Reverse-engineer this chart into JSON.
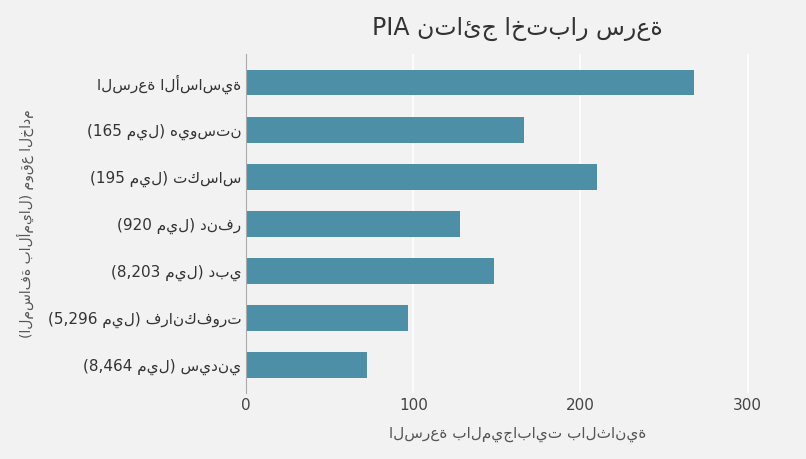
{
  "title": "PIA نتائج اختبار سرعة",
  "xlabel": "السرعة بالميجابايت بالثانية",
  "ylabel": "(المسافة بالأميال) موقع الخادم",
  "categories_display": [
    "السرعة الأساسية",
    "(165 ميل) هيوستن",
    "(195 ميل) تكساس",
    "(920 ميل) دنفر",
    "(8,203 ميل) دبي",
    "(5,296 ميل) فرانكفورت",
    "(8,464 ميل) سيدني"
  ],
  "values": [
    268,
    166,
    210,
    128,
    148,
    97,
    72
  ],
  "bar_color": "#4e8fa8",
  "background_color": "#f2f2f2",
  "xlim": [
    0,
    325
  ],
  "xticks": [
    0,
    100,
    200,
    300
  ],
  "title_fontsize": 17,
  "label_fontsize": 11,
  "tick_fontsize": 11,
  "ylabel_fontsize": 10,
  "bar_height": 0.55
}
